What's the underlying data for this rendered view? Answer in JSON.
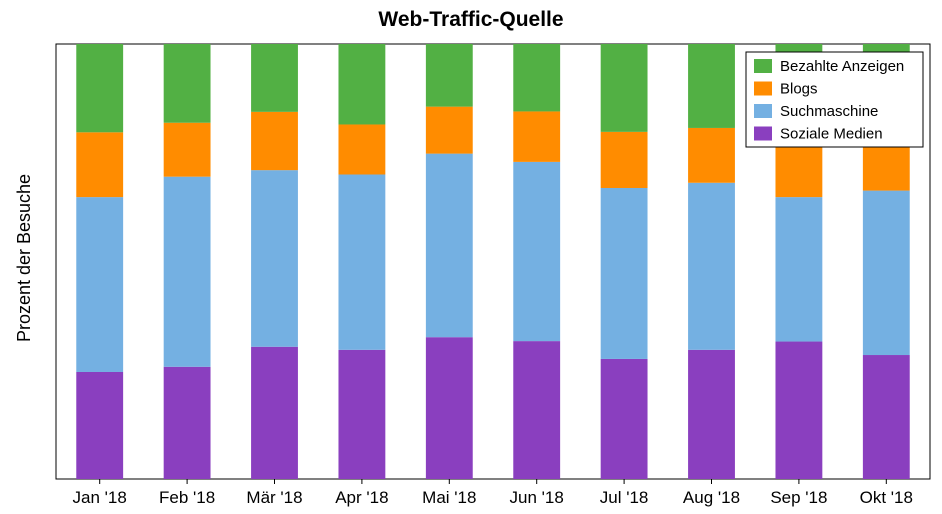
{
  "chart_data": {
    "type": "bar",
    "stacked": true,
    "percent_stacked": true,
    "title": "Web-Traffic-Quelle",
    "xlabel": "",
    "ylabel": "Prozent der Besuche",
    "ylim": [
      0,
      100
    ],
    "y_ticks_shown": false,
    "grid": false,
    "legend_position": "top-right",
    "categories": [
      "Jan '18",
      "Feb '18",
      "Mär '18",
      "Apr '18",
      "Mai '18",
      "Jun '18",
      "Jul '18",
      "Aug '18",
      "Sep '18",
      "Okt '18"
    ],
    "series": [
      {
        "name": "Soziale Medien",
        "color": "#8a3fbf",
        "values": [
          24.6,
          25.8,
          30.4,
          29.7,
          32.6,
          31.7,
          27.6,
          29.7,
          31.6,
          28.5
        ]
      },
      {
        "name": "Suchmaschine",
        "color": "#74b0e2",
        "values": [
          40.2,
          43.7,
          40.6,
          40.3,
          42.2,
          41.2,
          39.3,
          38.4,
          33.2,
          37.8
        ]
      },
      {
        "name": "Blogs",
        "color": "#ff8c00",
        "values": [
          14.9,
          12.4,
          13.4,
          11.5,
          10.8,
          11.6,
          12.9,
          12.6,
          14.5,
          14.2
        ]
      },
      {
        "name": "Bezahlte Anzeigen",
        "color": "#52b044",
        "values": [
          20.3,
          18.1,
          15.6,
          18.5,
          14.4,
          15.5,
          20.2,
          19.3,
          20.7,
          19.5
        ]
      }
    ],
    "legend_order": [
      "Bezahlte Anzeigen",
      "Blogs",
      "Suchmaschine",
      "Soziale Medien"
    ]
  }
}
